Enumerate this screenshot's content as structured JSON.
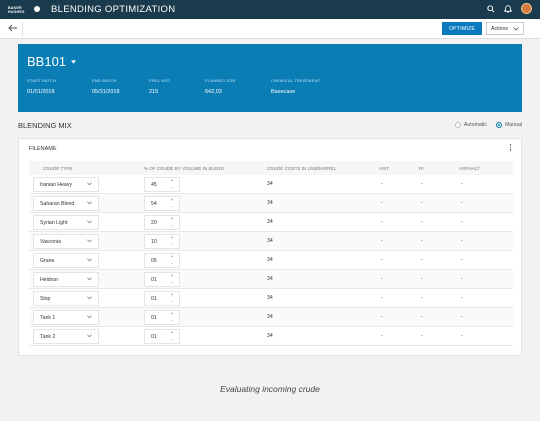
{
  "app": {
    "logo_line1": "BAKER",
    "logo_line2": "HUGHES",
    "title": "BLENDING OPTIMIZATION"
  },
  "toolbar": {
    "optimize_label": "OPTIMIZE",
    "actions_label": "Actions"
  },
  "hero": {
    "title": "BB101",
    "fields": [
      {
        "label": "START BATCH",
        "value": "01/01/2018"
      },
      {
        "label": "END BATCH",
        "value": "05/31/2018"
      },
      {
        "label": "PREL MST",
        "value": "215"
      },
      {
        "label": "PLANNED EDR",
        "value": "642,03"
      },
      {
        "label": "CHEMICAL TREATMENT",
        "value": "Basecase"
      }
    ]
  },
  "mix": {
    "title": "BLENDING MIX",
    "mode_automatic": "Automatic",
    "mode_manual": "Manual",
    "selected_mode": "Manual"
  },
  "card": {
    "title": "FILENAME"
  },
  "table": {
    "headers": [
      "CRUDE TYPE",
      "% OF CRUDE BY VOLUME IN BLEND",
      "CRUDE COSTS IN US$/BARREL",
      "ASIT",
      "RI",
      "ASPHALT"
    ],
    "rows": [
      {
        "crude": "Iranian Heavy",
        "pct": "45",
        "cost": "34",
        "asit": "-",
        "ri": "-",
        "asphalt": "-"
      },
      {
        "crude": "Saharan Blend",
        "pct": "54",
        "cost": "34",
        "asit": "-",
        "ri": "-",
        "asphalt": "-"
      },
      {
        "crude": "Syrian Light",
        "pct": "20",
        "cost": "34",
        "asit": "-",
        "ri": "-",
        "asphalt": "-"
      },
      {
        "crude": "Vasconia",
        "pct": "10",
        "cost": "34",
        "asit": "-",
        "ri": "-",
        "asphalt": "-"
      },
      {
        "crude": "Grane",
        "pct": "05",
        "cost": "34",
        "asit": "-",
        "ri": "-",
        "asphalt": "-"
      },
      {
        "crude": "Heidrun",
        "pct": "01",
        "cost": "34",
        "asit": "-",
        "ri": "-",
        "asphalt": "-"
      },
      {
        "crude": "Slop",
        "pct": "01",
        "cost": "34",
        "asit": "-",
        "ri": "-",
        "asphalt": "-"
      },
      {
        "crude": "Tank 1",
        "pct": "01",
        "cost": "34",
        "asit": "-",
        "ri": "-",
        "asphalt": "-"
      },
      {
        "crude": "Tank 2",
        "pct": "01",
        "cost": "34",
        "asit": "-",
        "ri": "-",
        "asphalt": "-"
      }
    ]
  },
  "caption": "Evaluating incoming crude",
  "colors": {
    "topbar": "#1a3a4e",
    "hero": "#0a7eb4",
    "primary_button": "#0a79be"
  },
  "icons": [
    "search-icon",
    "bell-icon",
    "avatar",
    "back-arrow-icon",
    "chevron-down-icon",
    "kebab-menu-icon"
  ]
}
